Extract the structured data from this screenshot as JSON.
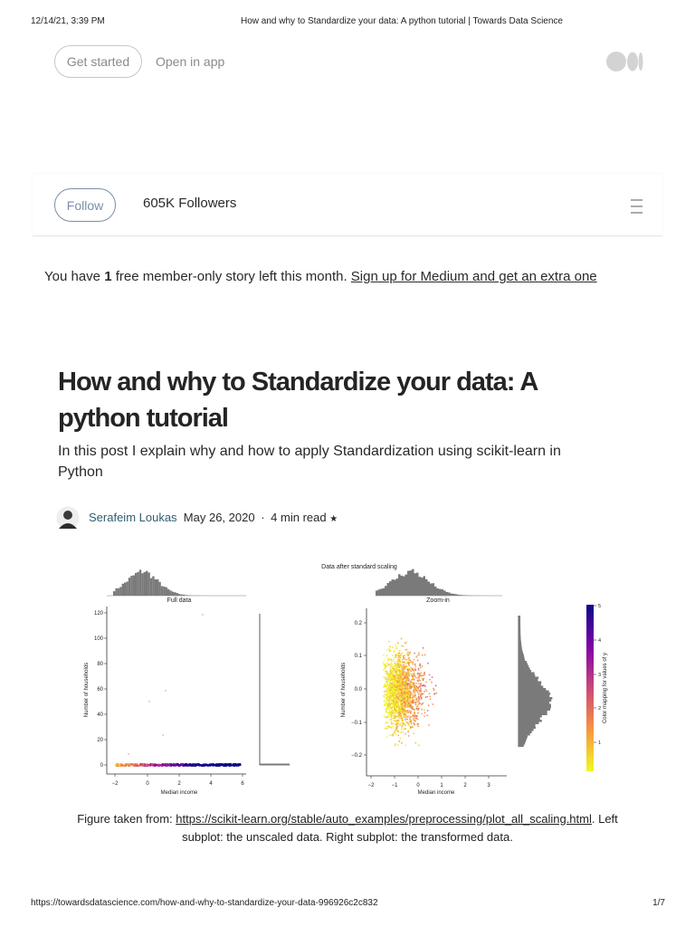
{
  "browser_header": {
    "datetime": "12/14/21, 3:39 PM",
    "page_title": "How and why to Standardize your data: A python tutorial | Towards Data Science"
  },
  "top_bar": {
    "get_started": "Get started",
    "open_in_app": "Open in app"
  },
  "publication_bar": {
    "follow": "Follow",
    "followers": "605K Followers"
  },
  "paywall_notice": {
    "prefix": "You have ",
    "count": "1",
    "suffix": " free member-only story left this month. ",
    "link": "Sign up for Medium and get an extra one"
  },
  "article": {
    "title": "How and why to Standardize your data: A python tutorial",
    "subtitle": "In this post I explain why and how to apply Standardization using scikit-learn in Python",
    "author": "Serafeim Loukas",
    "date": "May 26, 2020",
    "separator": "·",
    "read_time": "4 min read",
    "star": "★"
  },
  "figure": {
    "suptitle": "Data after standard scaling",
    "left": {
      "title": "Full data",
      "xlabel": "Median income",
      "ylabel": "Number of households",
      "xticks": [
        "−2",
        "0",
        "2",
        "4",
        "6"
      ],
      "yticks": [
        "0",
        "20",
        "40",
        "60",
        "80",
        "100",
        "120"
      ]
    },
    "right": {
      "title": "Zoom-in",
      "xlabel": "Median income",
      "ylabel": "Number of households",
      "xticks": [
        "−2",
        "−1",
        "0",
        "1",
        "2",
        "3"
      ],
      "yticks": [
        "−0.2",
        "−0.1",
        "0.0",
        "0.1",
        "0.2"
      ]
    },
    "colorbar": {
      "label": "Color mapping for values of y",
      "ticks": [
        "1",
        "2",
        "3",
        "4",
        "5"
      ]
    }
  },
  "caption": {
    "prefix": "Figure taken from: ",
    "link": "https://scikit-learn.org/stable/auto_examples/preprocessing/plot_all_scaling.html",
    "suffix": ". Left subplot: the unscaled data. Right subplot: the transformed data."
  },
  "browser_footer": {
    "url": "https://towardsdatascience.com/how-and-why-to-standardize-your-data-996926c2c832",
    "page": "1/7"
  }
}
